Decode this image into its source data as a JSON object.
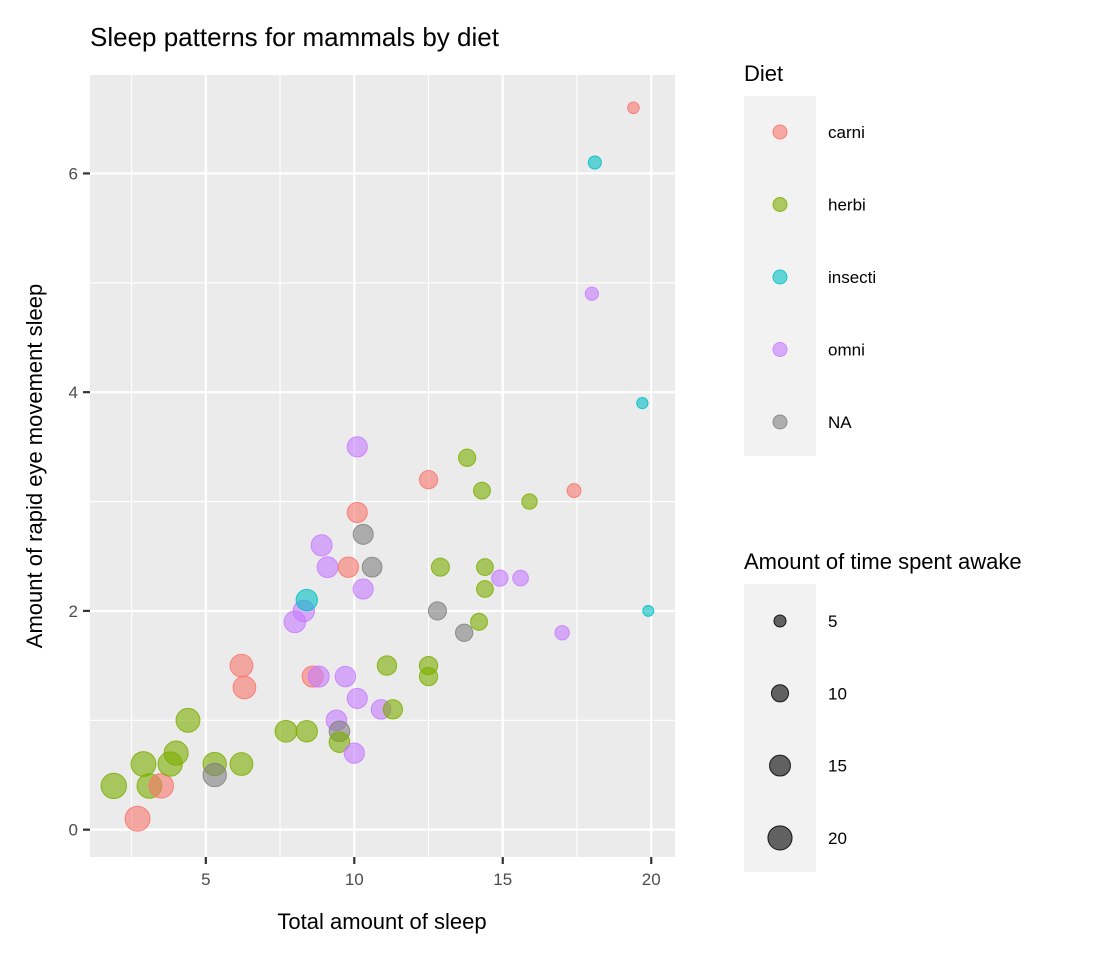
{
  "chart_data": {
    "type": "scatter",
    "title": "Sleep patterns for mammals by diet",
    "xlabel": "Total amount of sleep",
    "ylabel": "Amount of rapid eye movement sleep",
    "xlim": [
      1.1,
      20.8
    ],
    "ylim": [
      -0.25,
      6.9
    ],
    "xticks": [
      5,
      10,
      15,
      20
    ],
    "yticks": [
      0,
      2,
      4,
      6
    ],
    "grid": true,
    "point_opacity": 0.6,
    "color_legend": {
      "title": "Diet",
      "entries": [
        {
          "key": "carni",
          "label": "carni",
          "color": "#F8766D"
        },
        {
          "key": "herbi",
          "label": "herbi",
          "color": "#7CAE00"
        },
        {
          "key": "insecti",
          "label": "insecti",
          "color": "#00BFC4"
        },
        {
          "key": "omni",
          "label": "omni",
          "color": "#C77CFF"
        },
        {
          "key": "NA",
          "label": "NA",
          "color": "#808080"
        }
      ]
    },
    "size_legend": {
      "title": "Amount of time spent awake",
      "values": [
        5,
        10,
        15,
        20
      ],
      "labels": [
        "5",
        "10",
        "15",
        "20"
      ]
    },
    "points": [
      {
        "x": 19.4,
        "y": 6.6,
        "awake": 4.6,
        "diet": "carni"
      },
      {
        "x": 18.1,
        "y": 6.1,
        "awake": 5.9,
        "diet": "insecti"
      },
      {
        "x": 18.0,
        "y": 4.9,
        "awake": 6.0,
        "diet": "omni"
      },
      {
        "x": 19.7,
        "y": 3.9,
        "awake": 4.3,
        "diet": "insecti"
      },
      {
        "x": 19.9,
        "y": 2.0,
        "awake": 4.1,
        "diet": "insecti"
      },
      {
        "x": 17.4,
        "y": 3.1,
        "awake": 6.6,
        "diet": "carni"
      },
      {
        "x": 17.0,
        "y": 1.8,
        "awake": 7.0,
        "diet": "omni"
      },
      {
        "x": 15.9,
        "y": 3.0,
        "awake": 8.1,
        "diet": "herbi"
      },
      {
        "x": 15.6,
        "y": 2.3,
        "awake": 8.4,
        "diet": "omni"
      },
      {
        "x": 14.9,
        "y": 2.3,
        "awake": 9.1,
        "diet": "omni"
      },
      {
        "x": 14.3,
        "y": 3.1,
        "awake": 9.7,
        "diet": "herbi"
      },
      {
        "x": 13.8,
        "y": 3.4,
        "awake": 10.2,
        "diet": "herbi"
      },
      {
        "x": 14.4,
        "y": 2.4,
        "awake": 9.6,
        "diet": "herbi"
      },
      {
        "x": 14.4,
        "y": 2.2,
        "awake": 9.6,
        "diet": "herbi"
      },
      {
        "x": 14.2,
        "y": 1.9,
        "awake": 9.8,
        "diet": "herbi"
      },
      {
        "x": 13.7,
        "y": 1.8,
        "awake": 10.3,
        "diet": "NA"
      },
      {
        "x": 12.8,
        "y": 2.0,
        "awake": 11.2,
        "diet": "NA"
      },
      {
        "x": 12.9,
        "y": 2.4,
        "awake": 11.1,
        "diet": "herbi"
      },
      {
        "x": 12.5,
        "y": 3.2,
        "awake": 11.5,
        "diet": "carni"
      },
      {
        "x": 12.5,
        "y": 1.5,
        "awake": 11.5,
        "diet": "herbi"
      },
      {
        "x": 12.5,
        "y": 1.4,
        "awake": 11.5,
        "diet": "herbi"
      },
      {
        "x": 11.1,
        "y": 1.5,
        "awake": 12.9,
        "diet": "herbi"
      },
      {
        "x": 11.3,
        "y": 1.1,
        "awake": 12.7,
        "diet": "herbi"
      },
      {
        "x": 10.9,
        "y": 1.1,
        "awake": 13.1,
        "diet": "omni"
      },
      {
        "x": 10.6,
        "y": 2.4,
        "awake": 13.4,
        "diet": "NA"
      },
      {
        "x": 10.3,
        "y": 2.7,
        "awake": 13.7,
        "diet": "NA"
      },
      {
        "x": 10.1,
        "y": 3.5,
        "awake": 13.9,
        "diet": "omni"
      },
      {
        "x": 10.1,
        "y": 2.9,
        "awake": 13.9,
        "diet": "carni"
      },
      {
        "x": 10.3,
        "y": 2.2,
        "awake": 13.7,
        "diet": "omni"
      },
      {
        "x": 9.8,
        "y": 2.4,
        "awake": 14.2,
        "diet": "carni"
      },
      {
        "x": 10.1,
        "y": 1.2,
        "awake": 13.9,
        "diet": "omni"
      },
      {
        "x": 9.7,
        "y": 1.4,
        "awake": 14.3,
        "diet": "omni"
      },
      {
        "x": 10.0,
        "y": 0.7,
        "awake": 14.0,
        "diet": "omni"
      },
      {
        "x": 9.5,
        "y": 0.9,
        "awake": 14.5,
        "diet": "NA"
      },
      {
        "x": 9.5,
        "y": 0.8,
        "awake": 14.5,
        "diet": "herbi"
      },
      {
        "x": 9.4,
        "y": 1.0,
        "awake": 14.6,
        "diet": "omni"
      },
      {
        "x": 9.1,
        "y": 2.4,
        "awake": 14.9,
        "diet": "omni"
      },
      {
        "x": 8.9,
        "y": 2.6,
        "awake": 15.1,
        "diet": "omni"
      },
      {
        "x": 8.8,
        "y": 1.4,
        "awake": 15.2,
        "diet": "omni"
      },
      {
        "x": 8.6,
        "y": 1.4,
        "awake": 15.4,
        "diet": "carni"
      },
      {
        "x": 8.4,
        "y": 0.9,
        "awake": 15.6,
        "diet": "herbi"
      },
      {
        "x": 8.4,
        "y": 2.1,
        "awake": 15.6,
        "diet": "insecti"
      },
      {
        "x": 8.3,
        "y": 2.0,
        "awake": 15.7,
        "diet": "omni"
      },
      {
        "x": 8.0,
        "y": 1.9,
        "awake": 16.0,
        "diet": "omni"
      },
      {
        "x": 7.7,
        "y": 0.9,
        "awake": 16.3,
        "diet": "herbi"
      },
      {
        "x": 6.2,
        "y": 1.5,
        "awake": 17.8,
        "diet": "carni"
      },
      {
        "x": 6.3,
        "y": 1.3,
        "awake": 17.7,
        "diet": "carni"
      },
      {
        "x": 6.2,
        "y": 0.6,
        "awake": 17.8,
        "diet": "herbi"
      },
      {
        "x": 5.3,
        "y": 0.6,
        "awake": 18.7,
        "diet": "herbi"
      },
      {
        "x": 5.3,
        "y": 0.5,
        "awake": 18.7,
        "diet": "NA"
      },
      {
        "x": 4.4,
        "y": 1.0,
        "awake": 19.6,
        "diet": "herbi"
      },
      {
        "x": 4.0,
        "y": 0.7,
        "awake": 20.0,
        "diet": "herbi"
      },
      {
        "x": 3.8,
        "y": 0.6,
        "awake": 20.2,
        "diet": "herbi"
      },
      {
        "x": 3.5,
        "y": 0.4,
        "awake": 20.5,
        "diet": "carni"
      },
      {
        "x": 3.1,
        "y": 0.4,
        "awake": 20.9,
        "diet": "herbi"
      },
      {
        "x": 2.9,
        "y": 0.6,
        "awake": 21.1,
        "diet": "herbi"
      },
      {
        "x": 2.7,
        "y": 0.1,
        "awake": 21.3,
        "diet": "carni"
      },
      {
        "x": 1.9,
        "y": 0.4,
        "awake": 22.1,
        "diet": "herbi"
      }
    ]
  }
}
